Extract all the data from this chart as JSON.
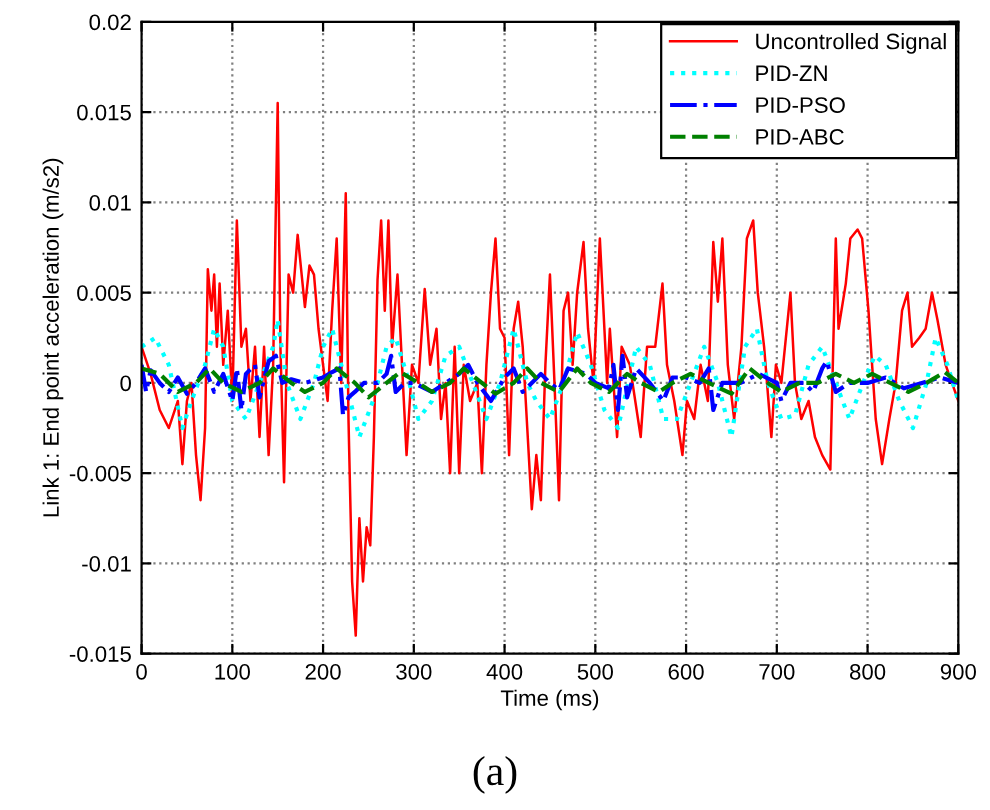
{
  "chart_data": {
    "type": "line",
    "xlabel": "Time (ms)",
    "ylabel": "Link 1: End point acceleration (m/s2)",
    "annotations": [
      "(a)"
    ],
    "xlim": [
      0,
      900
    ],
    "xticks": [
      0,
      100,
      200,
      300,
      400,
      500,
      600,
      700,
      800,
      900
    ],
    "ylim": [
      -0.015,
      0.02
    ],
    "yticks": [
      -0.015,
      -0.01,
      -0.005,
      0,
      0.005,
      0.01,
      0.015,
      0.02
    ],
    "grid": true,
    "legend": "top right",
    "marker": "none",
    "series": [
      {
        "name": "Uncontrolled Signal",
        "color": "#ff0000",
        "line_style": "solid",
        "x": [
          0,
          10,
          20,
          30,
          40,
          45,
          50,
          55,
          60,
          65,
          70,
          73,
          77,
          80,
          83,
          86,
          90,
          95,
          100,
          105,
          110,
          115,
          120,
          125,
          130,
          135,
          140,
          145,
          150,
          153,
          157,
          162,
          167,
          172,
          180,
          185,
          190,
          195,
          200,
          205,
          210,
          215,
          220,
          225,
          228,
          232,
          236,
          240,
          244,
          248,
          252,
          256,
          260,
          264,
          268,
          272,
          276,
          282,
          288,
          292,
          298,
          305,
          312,
          318,
          325,
          330,
          335,
          340,
          345,
          350,
          355,
          362,
          370,
          375,
          380,
          385,
          390,
          395,
          400,
          405,
          410,
          415,
          420,
          425,
          430,
          435,
          440,
          445,
          450,
          455,
          460,
          465,
          470,
          475,
          480,
          487,
          492,
          498,
          505,
          513,
          516,
          524,
          529,
          538,
          550,
          557,
          566,
          574,
          579,
          587,
          596,
          601,
          609,
          616,
          624,
          630,
          635,
          640,
          646,
          653,
          661,
          667,
          674,
          679,
          686,
          694,
          699,
          705,
          715,
          720,
          727,
          735,
          742,
          750,
          759,
          765,
          768,
          776,
          781,
          789,
          794,
          801,
          809,
          816,
          824,
          831,
          838,
          844,
          849,
          857,
          864,
          871,
          877,
          886,
          893,
          900
        ],
        "values": [
          0.002,
          0.0005,
          -0.0015,
          -0.0025,
          -0.001,
          -0.0045,
          -0.001,
          0,
          -0.004,
          -0.0065,
          -0.0025,
          0.0063,
          0.004,
          0.006,
          0.002,
          0.0055,
          0.001,
          0.004,
          -0.001,
          0.009,
          0.002,
          0.003,
          -0.001,
          0.002,
          -0.003,
          0.002,
          -0.004,
          0.001,
          0.0155,
          0.002,
          -0.0055,
          0.006,
          0.005,
          0.0082,
          0.0042,
          0.0065,
          0.006,
          0.003,
          0.001,
          -0.001,
          0.004,
          0.008,
          0,
          0.0105,
          -0.002,
          -0.011,
          -0.014,
          -0.0075,
          -0.011,
          -0.008,
          -0.009,
          -0.003,
          0.0057,
          0.009,
          0.004,
          0.009,
          0.002,
          0.006,
          0,
          -0.004,
          0.001,
          0,
          0.0052,
          0.001,
          0.003,
          -0.002,
          0,
          -0.005,
          0.002,
          -0.005,
          0.001,
          -0.001,
          0,
          -0.005,
          0.001,
          0.005,
          0.008,
          0.003,
          0.0025,
          -0.004,
          0.003,
          0.0045,
          0.002,
          -0.0025,
          -0.007,
          -0.004,
          -0.0065,
          0.001,
          0.006,
          0,
          -0.0065,
          0.004,
          0.005,
          0.001,
          0.005,
          0.0078,
          0.003,
          0,
          0.008,
          0,
          0.003,
          -0.003,
          0.002,
          0.001,
          -0.003,
          0.002,
          0.002,
          0.0055,
          0.001,
          -0.001,
          -0.004,
          -0.001,
          -0.002,
          0.001,
          -0.001,
          0.0078,
          0.0045,
          0.008,
          0.001,
          -0.002,
          0.002,
          0.008,
          0.009,
          0.005,
          0.002,
          -0.003,
          0.001,
          0,
          0.005,
          0,
          -0.002,
          -0.001,
          -0.003,
          -0.004,
          -0.0048,
          0.008,
          0.003,
          0.0055,
          0.008,
          0.0085,
          0.008,
          0.004,
          -0.002,
          -0.0045,
          -0.002,
          0,
          0.004,
          0.005,
          0.002,
          0.0025,
          0.003,
          0.005,
          0.0035,
          0.001,
          0,
          -0.001
        ]
      },
      {
        "name": "PID-ZN",
        "color": "#00ffff",
        "line_style": "dotted",
        "x": [
          0,
          15,
          30,
          45,
          55,
          70,
          80,
          90,
          100,
          115,
          130,
          145,
          150,
          160,
          175,
          190,
          200,
          210,
          225,
          240,
          255,
          270,
          280,
          295,
          305,
          320,
          335,
          350,
          365,
          380,
          395,
          410,
          425,
          435,
          450,
          465,
          480,
          495,
          510,
          525,
          545,
          560,
          575,
          590,
          605,
          620,
          635,
          650,
          665,
          678,
          690,
          705,
          720,
          735,
          750,
          765,
          780,
          795,
          808,
          820,
          835,
          850,
          865,
          875,
          888,
          900
        ],
        "values": [
          0.002,
          0.0025,
          0.001,
          -0.0025,
          -0.001,
          0.001,
          0.003,
          0.002,
          -0.001,
          -0.002,
          0,
          0.002,
          0.0035,
          0,
          -0.002,
          0,
          0.002,
          0.003,
          0,
          -0.003,
          -0.001,
          0.002,
          0.0025,
          0,
          -0.002,
          -0.001,
          0.0015,
          0.002,
          0,
          -0.002,
          0,
          0.003,
          0,
          -0.001,
          -0.002,
          0,
          0.0028,
          0.001,
          -0.0015,
          -0.0025,
          0.002,
          0.001,
          -0.002,
          -0.002,
          0,
          0.002,
          0,
          -0.003,
          0.002,
          0.003,
          0,
          -0.002,
          -0.0018,
          0.001,
          0.002,
          0,
          -0.002,
          0,
          0.0015,
          0.001,
          -0.001,
          -0.0025,
          0,
          0.0025,
          0.001,
          -0.001
        ]
      },
      {
        "name": "PID-PSO",
        "color": "#0000ff",
        "line_style": "dashdot",
        "x": [
          0,
          5,
          10,
          20,
          30,
          40,
          50,
          60,
          70,
          80,
          90,
          100,
          105,
          110,
          115,
          125,
          130,
          140,
          148,
          155,
          165,
          180,
          200,
          210,
          218,
          222,
          228,
          235,
          245,
          260,
          270,
          275,
          280,
          290,
          300,
          320,
          335,
          350,
          360,
          370,
          385,
          400,
          410,
          420,
          440,
          450,
          460,
          470,
          490,
          500,
          515,
          520,
          525,
          530,
          535,
          545,
          560,
          575,
          585,
          600,
          615,
          625,
          630,
          640,
          660,
          680,
          700,
          705,
          715,
          730,
          740,
          750,
          755,
          765,
          780,
          800,
          820,
          840,
          860,
          880,
          900
        ],
        "values": [
          0.001,
          -0.0005,
          0.0007,
          0,
          -0.0005,
          0.0003,
          -0.0006,
          0,
          0.0008,
          -0.0005,
          0.0005,
          -0.001,
          0.0008,
          -0.0015,
          0.0005,
          0.001,
          -0.0008,
          0.0012,
          0.0015,
          0,
          0.0002,
          0,
          0.0003,
          0.0006,
          0.0008,
          -0.0018,
          -0.0008,
          -0.0005,
          0,
          0,
          0.0005,
          0.0015,
          -0.0005,
          0,
          0,
          -0.0005,
          0,
          0.0005,
          0.001,
          0,
          -0.001,
          0.0003,
          0.0008,
          -0.0005,
          0.0005,
          0,
          -0.0004,
          0.0008,
          0.0005,
          0,
          -0.0003,
          0.001,
          -0.0015,
          0.0015,
          -0.0008,
          0.0008,
          0,
          -0.001,
          0.0003,
          0.0003,
          0,
          0.0008,
          -0.0015,
          0,
          0,
          0.0005,
          0,
          -0.001,
          0,
          0,
          -0.0005,
          0.0008,
          0.0012,
          -0.0005,
          0,
          0,
          0.0003,
          -0.0003,
          0,
          0.0003,
          0
        ]
      },
      {
        "name": "PID-ABC",
        "color": "#008000",
        "line_style": "dashed",
        "x": [
          0,
          20,
          40,
          60,
          75,
          90,
          110,
          130,
          145,
          165,
          180,
          200,
          215,
          235,
          250,
          270,
          285,
          305,
          320,
          340,
          355,
          375,
          390,
          410,
          425,
          440,
          460,
          480,
          495,
          515,
          535,
          550,
          570,
          585,
          605,
          625,
          650,
          670,
          690,
          705,
          725,
          745,
          765,
          785,
          805,
          825,
          845,
          865,
          885,
          900
        ],
        "values": [
          0.0008,
          0.0005,
          -0.0005,
          0,
          0.0008,
          0,
          -0.0005,
          0,
          0.0008,
          0,
          -0.0005,
          0,
          0.0008,
          0,
          -0.0008,
          0,
          0.0006,
          0,
          -0.0005,
          0,
          0.0008,
          0,
          -0.0006,
          0,
          0.0008,
          0,
          -0.0005,
          0.0008,
          0,
          -0.0005,
          0.0005,
          0,
          -0.0005,
          0,
          0.0005,
          0,
          -0.0006,
          0.0008,
          0,
          -0.0005,
          0,
          0,
          0.0005,
          0,
          0.0005,
          0,
          -0.0005,
          0,
          0.0006,
          0
        ]
      }
    ]
  }
}
